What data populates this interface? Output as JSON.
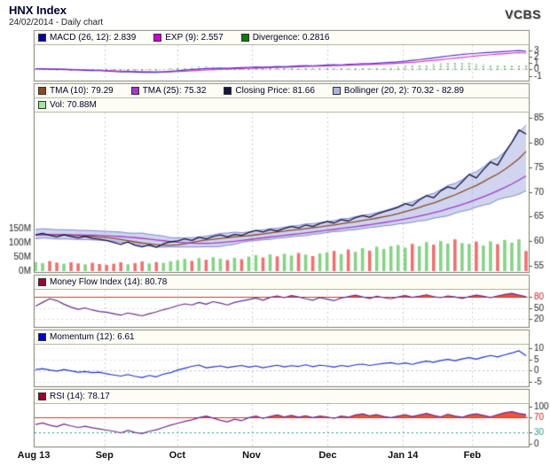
{
  "header": {
    "title": "HNX Index",
    "subtitle": "24/02/2014 - Daily chart",
    "brand": "VCBS"
  },
  "legends": {
    "macd": [
      {
        "label": "MACD (26, 12): 2.839",
        "color": "#0000a0"
      },
      {
        "label": "EXP (9): 2.557",
        "color": "#cc00cc"
      },
      {
        "label": "Divergence: 0.2816",
        "color": "#0a7a0a"
      }
    ],
    "price1": [
      {
        "label": "TMA (10): 79.29",
        "color": "#8a4a26"
      },
      {
        "label": "TMA (25): 75.32",
        "color": "#a23cc8"
      },
      {
        "label": "Closing Price: 81.66",
        "color": "#15153d"
      },
      {
        "label": "Bollinger (20, 2): 70.32 - 82.89",
        "color": "#aab4e4"
      }
    ],
    "price2": [
      {
        "label": "Vol: 70.88M",
        "color": "#9fe89f"
      }
    ],
    "mfi": [
      {
        "label": "Money Flow Index (14): 80.78",
        "color": "#990033"
      }
    ],
    "momentum": [
      {
        "label": "Momentum (12): 6.61",
        "color": "#0000cc"
      }
    ],
    "rsi": [
      {
        "label": "RSI (14): 78.17",
        "color": "#990033"
      }
    ]
  },
  "chart_data": {
    "type": "line",
    "title": "HNX Index - Daily chart",
    "x_axis": {
      "labels": [
        "Aug 13",
        "Sep",
        "Oct",
        "Nov",
        "Dec",
        "Jan 14",
        "Feb"
      ],
      "fracs": [
        0,
        0.143,
        0.29,
        0.44,
        0.594,
        0.746,
        0.886
      ]
    },
    "panels": {
      "macd": {
        "y_range": [
          -1.6,
          3.8
        ],
        "ticks": [
          {
            "v": 3
          },
          {
            "v": 2
          },
          {
            "v": 1
          },
          {
            "v": 0
          },
          {
            "v": -1
          }
        ],
        "series": [
          {
            "name": "MACD (26, 12)",
            "last": 2.839,
            "color": "#5b2fc8",
            "values": [
              0.1,
              0.08,
              0.05,
              0.02,
              0.0,
              -0.05,
              -0.08,
              -0.12,
              -0.15,
              -0.18,
              -0.25,
              -0.32,
              -0.38,
              -0.35,
              -0.42,
              -0.45,
              -0.4,
              -0.44,
              -0.38,
              -0.3,
              -0.2,
              -0.1,
              0.0,
              0.08,
              0.14,
              0.18,
              0.22,
              0.19,
              0.26,
              0.3,
              0.34,
              0.38,
              0.35,
              0.41,
              0.45,
              0.43,
              0.5,
              0.55,
              0.6,
              0.58,
              0.64,
              0.7,
              0.75,
              0.72,
              0.8,
              0.86,
              0.92,
              0.9,
              0.98,
              1.05,
              1.12,
              1.2,
              1.3,
              1.42,
              1.55,
              1.68,
              1.82,
              1.95,
              2.1,
              2.22,
              2.35,
              2.45,
              2.52,
              2.6,
              2.68,
              2.75,
              2.82,
              2.9,
              2.95,
              2.839
            ]
          },
          {
            "name": "EXP (9)",
            "last": 2.557,
            "color": "#d23cc8",
            "values": [
              0.12,
              0.11,
              0.09,
              0.07,
              0.05,
              0.02,
              -0.01,
              -0.04,
              -0.08,
              -0.11,
              -0.15,
              -0.2,
              -0.25,
              -0.28,
              -0.31,
              -0.34,
              -0.36,
              -0.38,
              -0.38,
              -0.36,
              -0.32,
              -0.26,
              -0.2,
              -0.14,
              -0.08,
              -0.02,
              0.03,
              0.07,
              0.11,
              0.15,
              0.19,
              0.23,
              0.26,
              0.29,
              0.32,
              0.35,
              0.38,
              0.41,
              0.45,
              0.48,
              0.51,
              0.55,
              0.59,
              0.62,
              0.66,
              0.7,
              0.74,
              0.78,
              0.82,
              0.87,
              0.92,
              0.98,
              1.05,
              1.13,
              1.22,
              1.32,
              1.42,
              1.53,
              1.65,
              1.77,
              1.89,
              2.0,
              2.11,
              2.21,
              2.31,
              2.4,
              2.48,
              2.56,
              2.62,
              2.557
            ]
          }
        ],
        "histogram": {
          "name": "Divergence",
          "last": 0.2816,
          "color": "#1e7d1e"
        }
      },
      "price": {
        "y_range": [
          54,
          86
        ],
        "ticks": [
          {
            "v": 85
          },
          {
            "v": 80
          },
          {
            "v": 75
          },
          {
            "v": 70
          },
          {
            "v": 65
          },
          {
            "v": 60
          },
          {
            "v": 55
          }
        ],
        "close": {
          "name": "Closing Price",
          "last": 81.66,
          "color": "#15153d",
          "values": [
            61.3,
            61.6,
            61.2,
            60.9,
            61.3,
            61.0,
            60.7,
            61.0,
            60.6,
            60.4,
            60.2,
            59.8,
            59.4,
            59.9,
            59.2,
            58.9,
            59.3,
            58.8,
            59.5,
            59.9,
            60.1,
            60.5,
            60.2,
            60.8,
            60.5,
            61.0,
            61.3,
            60.9,
            61.4,
            61.2,
            61.8,
            62.2,
            61.9,
            62.4,
            62.1,
            62.6,
            63.0,
            62.7,
            63.3,
            63.0,
            63.6,
            64.0,
            63.7,
            64.4,
            64.1,
            64.8,
            65.2,
            64.9,
            65.5,
            66.0,
            66.4,
            66.9,
            67.6,
            67.2,
            68.4,
            69.2,
            68.8,
            70.2,
            71.0,
            70.6,
            72.0,
            73.5,
            72.8,
            74.5,
            76.0,
            75.4,
            77.8,
            80.0,
            82.5,
            81.66
          ]
        },
        "tma10": {
          "name": "TMA (10)",
          "last": 79.29,
          "color": "#8a4a26"
        },
        "tma25": {
          "name": "TMA (25)",
          "last": 75.32,
          "color": "#a23cc8"
        },
        "bollinger": {
          "name": "Bollinger (20, 2)",
          "lower": 70.32,
          "upper": 82.89,
          "fill": "rgba(150,160,220,0.45)",
          "edge": "rgba(108,120,200,0.85)"
        },
        "volume": {
          "name": "Vol",
          "last": 70.88,
          "unit": "M",
          "color_up": "#86d386",
          "color_down": "#ef7070",
          "axis_ticks": [
            150,
            100,
            50,
            0
          ],
          "values": [
            32,
            28,
            35,
            30,
            26,
            31,
            27,
            24,
            29,
            25,
            22,
            26,
            31,
            24,
            28,
            34,
            27,
            32,
            29,
            35,
            38,
            43,
            36,
            46,
            40,
            49,
            44,
            39,
            47,
            42,
            51,
            56,
            48,
            59,
            52,
            61,
            55,
            64,
            58,
            53,
            62,
            66,
            71,
            60,
            76,
            68,
            81,
            72,
            86,
            78,
            88,
            92,
            83,
            96,
            88,
            102,
            93,
            106,
            97,
            112,
            99,
            96,
            104,
            90,
            105,
            95,
            110,
            100,
            112,
            70.88
          ]
        }
      },
      "mfi": {
        "y_range": [
          0,
          100
        ],
        "ticks": [
          {
            "v": 80,
            "c": "#cc2020"
          },
          {
            "v": 50
          },
          {
            "v": 20
          }
        ],
        "threshold": {
          "v": 80,
          "color": "#e03030",
          "fill": "#f4503a"
        },
        "series": {
          "name": "Money Flow Index (14)",
          "last": 80.78,
          "color": "#6b2d8b",
          "values": [
            55,
            65,
            75,
            70,
            60,
            52,
            46,
            50,
            44,
            40,
            38,
            34,
            30,
            36,
            32,
            28,
            34,
            39,
            45,
            50,
            56,
            61,
            58,
            65,
            60,
            67,
            63,
            58,
            65,
            69,
            73,
            77,
            71,
            79,
            83,
            78,
            84,
            80,
            75,
            71,
            78,
            74,
            70,
            77,
            81,
            85,
            80,
            76,
            82,
            78,
            75,
            80,
            84,
            79,
            82,
            86,
            81,
            78,
            83,
            80,
            76,
            81,
            85,
            82,
            78,
            83,
            87,
            90,
            85,
            80.78
          ]
        }
      },
      "momentum": {
        "y_range": [
          -6.5,
          11.5
        ],
        "ticks": [
          {
            "v": 10
          },
          {
            "v": 5
          },
          {
            "v": 0
          },
          {
            "v": -5
          }
        ],
        "series": {
          "name": "Momentum (12)",
          "last": 6.61,
          "color": "#2334c8",
          "values": [
            0.5,
            0.9,
            0.3,
            -0.2,
            0.5,
            -0.1,
            -0.7,
            -0.4,
            -0.9,
            -0.7,
            -1.4,
            -1.9,
            -2.4,
            -1.7,
            -2.5,
            -3.0,
            -2.1,
            -2.7,
            -1.5,
            -0.9,
            0.3,
            1.1,
            1.9,
            2.5,
            1.3,
            1.7,
            2.1,
            1.4,
            1.9,
            2.3,
            1.6,
            2.1,
            1.3,
            1.9,
            2.4,
            1.7,
            2.2,
            1.9,
            2.6,
            1.8,
            2.4,
            2.1,
            1.6,
            2.3,
            1.9,
            2.6,
            2.9,
            2.3,
            2.8,
            3.2,
            3.5,
            2.9,
            3.4,
            2.8,
            3.6,
            4.2,
            3.7,
            4.5,
            5.0,
            4.4,
            5.2,
            5.8,
            5.1,
            6.0,
            6.7,
            6.1,
            7.0,
            7.8,
            8.8,
            6.61
          ]
        }
      },
      "rsi": {
        "y_range": [
          -4,
          106
        ],
        "ticks": [
          {
            "v": 100
          },
          {
            "v": 70,
            "c": "#cc2020"
          },
          {
            "v": 30,
            "c": "#2a9a8a"
          },
          {
            "v": 0
          }
        ],
        "threshold": {
          "v": 70,
          "color": "#e03030",
          "fill": "#f4503a"
        },
        "lower_line": {
          "v": 30,
          "color": "#2a9a8a"
        },
        "series": {
          "name": "RSI (14)",
          "last": 78.17,
          "color": "#6b2d8b",
          "values": [
            52,
            56,
            50,
            46,
            53,
            48,
            44,
            47,
            43,
            40,
            37,
            34,
            30,
            36,
            31,
            28,
            34,
            38,
            44,
            50,
            55,
            60,
            64,
            70,
            74,
            69,
            63,
            59,
            66,
            62,
            70,
            74,
            68,
            73,
            77,
            72,
            76,
            71,
            75,
            70,
            74,
            72,
            68,
            74,
            71,
            77,
            80,
            75,
            78,
            73,
            70,
            74,
            78,
            73,
            77,
            81,
            76,
            72,
            79,
            74,
            71,
            77,
            80,
            76,
            72,
            78,
            83,
            86,
            81,
            78.17
          ]
        }
      }
    }
  }
}
